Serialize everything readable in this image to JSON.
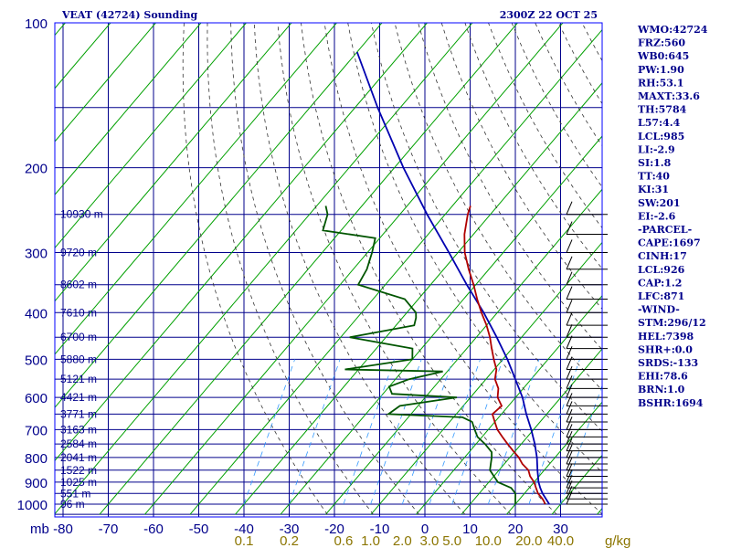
{
  "header": {
    "station": "VEAT (42724) Sounding",
    "valid_time": "2300Z 22 OCT 25"
  },
  "stats": [
    "WMO:42724",
    "FRZ:560",
    "WB0:645",
    "PW:1.90",
    "RH:53.1",
    "MAXT:33.6",
    "TH:5784",
    "L57:4.4",
    "LCL:985",
    "LI:-2.9",
    "SI:1.8",
    "TT:40",
    "KI:31",
    "SW:201",
    "EI:-2.6",
    "-PARCEL-",
    "CAPE:1697",
    "CINH:17",
    "LCL:926",
    "CAP:1.2",
    "LFC:871",
    "-WIND-",
    "STM:296/12",
    "HEL:7398",
    "SHR+:0.0",
    "SRDS:-133",
    "EHI:78.6",
    "BRN:1.0",
    "BSHR:1694"
  ],
  "chart_data": {
    "type": "line",
    "x_unit_label": "mb",
    "x_ticks": [
      -80,
      -70,
      -60,
      -50,
      -40,
      -30,
      -20,
      -10,
      0,
      10,
      20,
      30
    ],
    "x_tick_labels": [
      "-80",
      "-70",
      "-60",
      "-50",
      "-40",
      "-30",
      "-20",
      "-10",
      "0",
      "10",
      "20",
      "30"
    ],
    "y_ticks": [
      100,
      200,
      300,
      400,
      500,
      600,
      700,
      800,
      900,
      1000
    ],
    "y_tick_labels": [
      "100",
      "200",
      "300",
      "400",
      "500",
      "600",
      "700",
      "800",
      "900",
      "1000"
    ],
    "height_labels": [
      {
        "p": 250,
        "text": "10930 m"
      },
      {
        "p": 300,
        "text": "9720 m"
      },
      {
        "p": 350,
        "text": "8602 m"
      },
      {
        "p": 400,
        "text": "7610 m"
      },
      {
        "p": 450,
        "text": "6700 m"
      },
      {
        "p": 500,
        "text": "5880 m"
      },
      {
        "p": 550,
        "text": "5121 m"
      },
      {
        "p": 600,
        "text": "4421 m"
      },
      {
        "p": 650,
        "text": "3771 m"
      },
      {
        "p": 700,
        "text": "3163 m"
      },
      {
        "p": 750,
        "text": "2584 m"
      },
      {
        "p": 800,
        "text": "2041 m"
      },
      {
        "p": 850,
        "text": "1522 m"
      },
      {
        "p": 900,
        "text": "1025 m"
      },
      {
        "p": 950,
        "text": "551 m"
      },
      {
        "p": 1000,
        "text": "96 m"
      }
    ],
    "mixing_ratio_labels": [
      {
        "t": -40,
        "text": "0.1"
      },
      {
        "t": -30,
        "text": "0.2"
      },
      {
        "t": -18,
        "text": "0.6"
      },
      {
        "t": -12,
        "text": "1.0"
      },
      {
        "t": -5,
        "text": "2.0"
      },
      {
        "t": 1,
        "text": "3.0"
      },
      {
        "t": 6,
        "text": "5.0"
      },
      {
        "t": 14,
        "text": "10.0"
      },
      {
        "t": 23,
        "text": "20.0"
      },
      {
        "t": 30,
        "text": "40.0"
      }
    ],
    "mixing_ratio_unit": "g/kg",
    "temperature": [
      {
        "p": 1000,
        "t": 26.5
      },
      {
        "p": 990,
        "t": 26
      },
      {
        "p": 975,
        "t": 25
      },
      {
        "p": 950,
        "t": 23
      },
      {
        "p": 925,
        "t": 21.5
      },
      {
        "p": 900,
        "t": 20
      },
      {
        "p": 875,
        "t": 18
      },
      {
        "p": 850,
        "t": 16.5
      },
      {
        "p": 825,
        "t": 14
      },
      {
        "p": 800,
        "t": 12
      },
      {
        "p": 775,
        "t": 9.5
      },
      {
        "p": 750,
        "t": 7
      },
      {
        "p": 725,
        "t": 4.5
      },
      {
        "p": 700,
        "t": 2
      },
      {
        "p": 675,
        "t": 0
      },
      {
        "p": 650,
        "t": -2
      },
      {
        "p": 625,
        "t": -1.5
      },
      {
        "p": 600,
        "t": -4
      },
      {
        "p": 575,
        "t": -5.5
      },
      {
        "p": 550,
        "t": -8
      },
      {
        "p": 525,
        "t": -9.5
      },
      {
        "p": 500,
        "t": -12
      },
      {
        "p": 475,
        "t": -14.5
      },
      {
        "p": 450,
        "t": -17
      },
      {
        "p": 425,
        "t": -20
      },
      {
        "p": 400,
        "t": -23.5
      },
      {
        "p": 375,
        "t": -27
      },
      {
        "p": 350,
        "t": -30.5
      },
      {
        "p": 325,
        "t": -34.5
      },
      {
        "p": 300,
        "t": -38.5
      },
      {
        "p": 275,
        "t": -42
      },
      {
        "p": 250,
        "t": -45
      },
      {
        "p": 240,
        "t": -46
      }
    ],
    "dewpoint": [
      {
        "p": 1000,
        "t": 20
      },
      {
        "p": 975,
        "t": 19
      },
      {
        "p": 950,
        "t": 18
      },
      {
        "p": 925,
        "t": 16
      },
      {
        "p": 900,
        "t": 12
      },
      {
        "p": 875,
        "t": 10
      },
      {
        "p": 850,
        "t": 8
      },
      {
        "p": 825,
        "t": 7
      },
      {
        "p": 800,
        "t": 6
      },
      {
        "p": 780,
        "t": 5
      },
      {
        "p": 750,
        "t": 2
      },
      {
        "p": 725,
        "t": -1
      },
      {
        "p": 700,
        "t": -3
      },
      {
        "p": 675,
        "t": -5
      },
      {
        "p": 660,
        "t": -8
      },
      {
        "p": 650,
        "t": -25
      },
      {
        "p": 625,
        "t": -24
      },
      {
        "p": 600,
        "t": -13
      },
      {
        "p": 590,
        "t": -28
      },
      {
        "p": 570,
        "t": -30
      },
      {
        "p": 550,
        "t": -27
      },
      {
        "p": 530,
        "t": -21
      },
      {
        "p": 525,
        "t": -43
      },
      {
        "p": 500,
        "t": -30
      },
      {
        "p": 475,
        "t": -32
      },
      {
        "p": 450,
        "t": -48
      },
      {
        "p": 425,
        "t": -36
      },
      {
        "p": 410,
        "t": -37
      },
      {
        "p": 400,
        "t": -38
      },
      {
        "p": 375,
        "t": -43
      },
      {
        "p": 350,
        "t": -56
      },
      {
        "p": 325,
        "t": -57
      },
      {
        "p": 300,
        "t": -59
      },
      {
        "p": 280,
        "t": -61
      },
      {
        "p": 270,
        "t": -74
      },
      {
        "p": 250,
        "t": -76
      },
      {
        "p": 240,
        "t": -78
      }
    ],
    "parcel": [
      {
        "p": 1000,
        "t": 27.5
      },
      {
        "p": 950,
        "t": 24
      },
      {
        "p": 926,
        "t": 22.5
      },
      {
        "p": 900,
        "t": 21
      },
      {
        "p": 850,
        "t": 18.5
      },
      {
        "p": 800,
        "t": 16
      },
      {
        "p": 750,
        "t": 13
      },
      {
        "p": 700,
        "t": 9.5
      },
      {
        "p": 650,
        "t": 5.5
      },
      {
        "p": 600,
        "t": 1.5
      },
      {
        "p": 550,
        "t": -3.5
      },
      {
        "p": 500,
        "t": -9
      },
      {
        "p": 450,
        "t": -15.5
      },
      {
        "p": 400,
        "t": -23
      },
      {
        "p": 350,
        "t": -32
      },
      {
        "p": 300,
        "t": -42
      },
      {
        "p": 250,
        "t": -54
      },
      {
        "p": 200,
        "t": -68
      },
      {
        "p": 150,
        "t": -85
      },
      {
        "p": 115,
        "t": -100
      }
    ]
  }
}
